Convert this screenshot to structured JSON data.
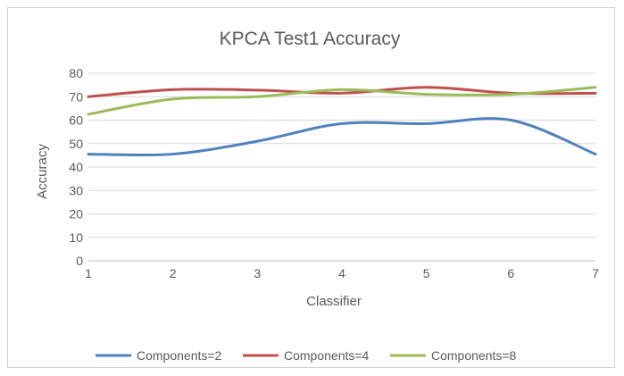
{
  "chart_data": {
    "type": "line",
    "title": "KPCA Test1 Accuracy",
    "xlabel": "Classifier",
    "ylabel": "Accuracy",
    "x": [
      1,
      2,
      3,
      4,
      5,
      6,
      7
    ],
    "xlim": [
      1,
      7
    ],
    "ylim": [
      0,
      80
    ],
    "yticks": [
      0,
      10,
      20,
      30,
      40,
      50,
      60,
      70,
      80
    ],
    "xticks": [
      1,
      2,
      3,
      4,
      5,
      6,
      7
    ],
    "grid": "horizontal",
    "legend_position": "bottom",
    "series": [
      {
        "name": "Components=2",
        "color": "#4f81bd",
        "values": [
          45.5,
          45.5,
          51,
          58.5,
          58.5,
          60,
          45.5
        ]
      },
      {
        "name": "Components=4",
        "color": "#c0504d",
        "values": [
          70,
          73,
          72.8,
          71.5,
          74,
          71.5,
          71.5
        ]
      },
      {
        "name": "Components=8",
        "color": "#9bbb59",
        "values": [
          62.5,
          69,
          70,
          73,
          71,
          71,
          74
        ]
      }
    ]
  }
}
